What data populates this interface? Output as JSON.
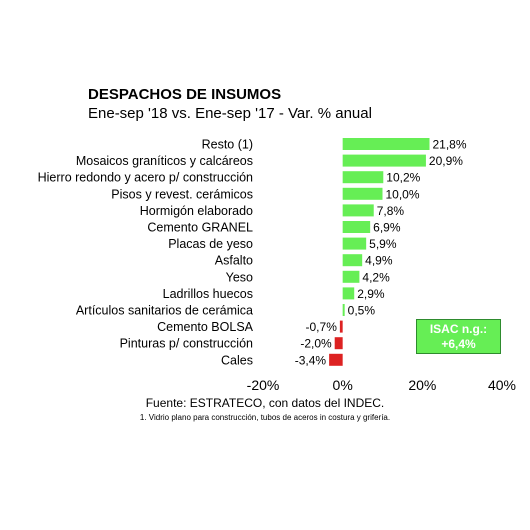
{
  "header": {
    "title": "DESPACHOS DE INSUMOS",
    "subtitle": "Ene-sep '18 vs. Ene-sep '17 - Var. % anual"
  },
  "callout": {
    "line1": "ISAC n.g.:",
    "line2": "+6,4%"
  },
  "footer": {
    "source": "Fuente: ESTRATECO, con datos del INDEC.",
    "note": "1. Vidrio plano para construcción, tubos de aceros in costura y grifería."
  },
  "colors": {
    "positive": "#66ee55",
    "negative": "#dd2222"
  },
  "chart_data": {
    "type": "bar",
    "orientation": "horizontal",
    "categories": [
      "Resto (1)",
      "Mosaicos graníticos y calcáreos",
      "Hierro redondo y acero p/ construcción",
      "Pisos y revest. cerámicos",
      "Hormigón elaborado",
      "Cemento GRANEL",
      "Placas de yeso",
      "Asfalto",
      "Yeso",
      "Ladrillos huecos",
      "Artículos sanitarios de cerámica",
      "Cemento BOLSA",
      "Pinturas p/ construcción",
      "Cales"
    ],
    "values": [
      21.8,
      20.9,
      10.2,
      10.0,
      7.8,
      6.9,
      5.9,
      4.9,
      4.2,
      2.9,
      0.5,
      -0.7,
      -2.0,
      -3.4
    ],
    "value_labels": [
      "21,8%",
      "20,9%",
      "10,2%",
      "10,0%",
      "7,8%",
      "6,9%",
      "5,9%",
      "4,9%",
      "4,2%",
      "2,9%",
      "0,5%",
      "-0,7%",
      "-2,0%",
      "-3,4%"
    ],
    "xlim": [
      -20,
      40
    ],
    "xticks": [
      -20,
      0,
      20,
      40
    ],
    "xtick_labels": [
      "-20%",
      "0%",
      "20%",
      "40%"
    ],
    "grid": false,
    "legend": "none"
  }
}
